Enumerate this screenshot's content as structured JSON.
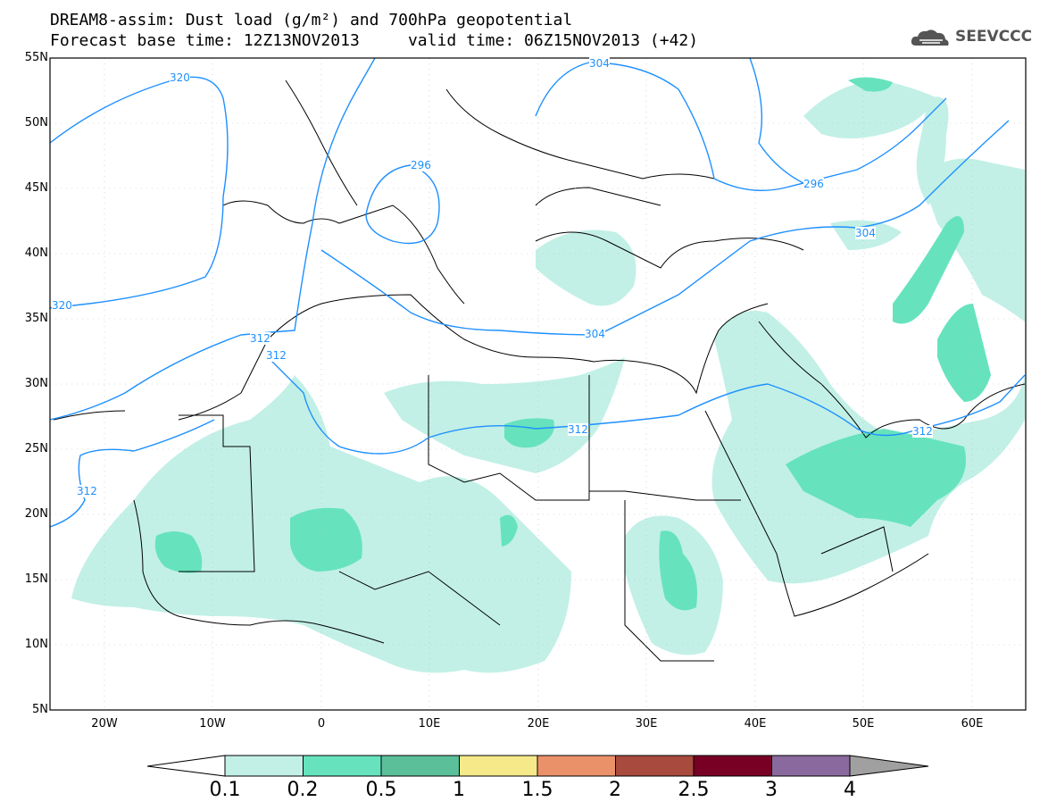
{
  "title": {
    "line1": "DREAM8-assim: Dust load (g/m²) and 700hPa geopotential",
    "line2": "Forecast base time: 12Z13NOV2013     valid time: 06Z15NOV2013 (+42)"
  },
  "logo": {
    "text": "SEEVCCC",
    "icon": "cloud-icon"
  },
  "axes": {
    "lat_labels": [
      "55N",
      "50N",
      "45N",
      "40N",
      "35N",
      "30N",
      "25N",
      "20N",
      "15N",
      "10N",
      "5N"
    ],
    "lon_labels": [
      "20W",
      "10W",
      "0",
      "10E",
      "20E",
      "30E",
      "40E",
      "50E",
      "60E"
    ]
  },
  "contours": {
    "labels": [
      "320",
      "320",
      "304",
      "296",
      "304",
      "296",
      "304",
      "312",
      "312",
      "312",
      "312",
      "312"
    ]
  },
  "colorbar": {
    "labels": [
      "0.1",
      "0.2",
      "0.5",
      "1",
      "1.5",
      "2",
      "2.5",
      "3",
      "4"
    ],
    "colors": [
      "#c2f0e6",
      "#66e3bd",
      "#5bbf9a",
      "#f5e989",
      "#eb916a",
      "#a84a3d",
      "#780024",
      "#8a6a9e",
      "#a0a0a0"
    ]
  },
  "colors": {
    "contour": "#1e90ff",
    "dust_light": "#c2f0e6",
    "dust_medium": "#66e3bd",
    "border": "#000000"
  }
}
